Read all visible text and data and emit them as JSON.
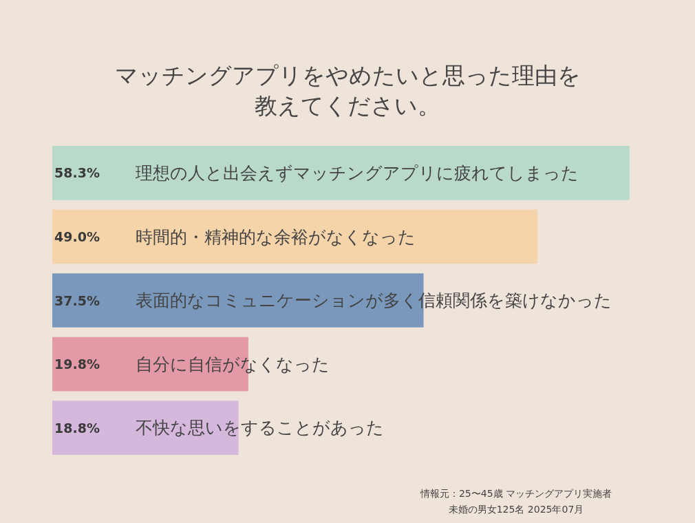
{
  "chart_data": {
    "type": "bar",
    "orientation": "horizontal",
    "title": "マッチングアプリをやめたいと思った理由を教えてください。",
    "categories": [
      "理想の人と出会えずマッチングアプリに疲れてしまった",
      "時間的・精神的な余裕がなくなった",
      "表面的なコミュニケーションが多く信頼関係を築けなかった",
      "自分に自信がなくなった",
      "不快な思いをすることがあった"
    ],
    "values": [
      58.3,
      49.0,
      37.5,
      19.8,
      18.8
    ],
    "value_labels": [
      "58.3%",
      "49.0%",
      "37.5%",
      "19.8%",
      "18.8%"
    ],
    "colors": [
      "#b9d9cb",
      "#f5d4a9",
      "#7a98bb",
      "#e499a7",
      "#d6b8dd"
    ],
    "tick_labels": "y",
    "annotations": [
      "情報元：25〜45歳 マッチングアプリ実施者",
      "未婚の男女125名 2025年07月"
    ]
  }
}
